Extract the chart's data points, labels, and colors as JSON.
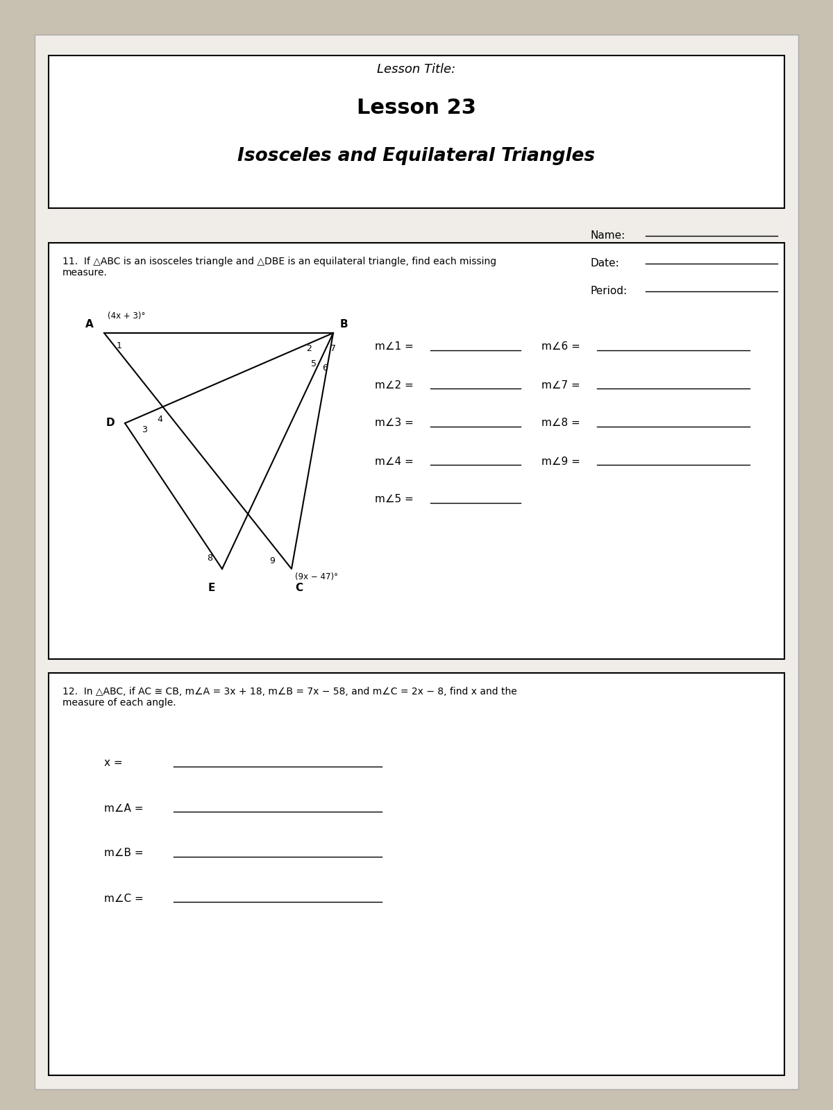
{
  "bg_color": "#c8c0b0",
  "paper_color": "#f0ede8",
  "title_lesson": "Lesson Title:",
  "title_main": "Lesson 23",
  "title_sub": "Isosceles and Equilateral Triangles",
  "name_label": "Name:",
  "date_label": "Date:",
  "period_label": "Period:",
  "q11_text": "11.  If △ABC is an isosceles triangle and △DBE is an equilateral triangle, find each missing\nmeasure.",
  "q11_labels_left": [
    "m∠1 =",
    "m∠2 =",
    "m∠3 =",
    "m∠4 =",
    "m∠5 ="
  ],
  "q11_labels_right": [
    "m∠6 =",
    "m∠7 =",
    "m∠8 =",
    "m∠9 ="
  ],
  "q12_text": "12.  In △ABC, if AC ≅ CB, m∠A = 3x + 18, m∠B = 7x − 58, and m∠C = 2x − 8, find x and the\nmeasure of each angle.",
  "q12_labels": [
    "x =",
    "m∠A =",
    "m∠B =",
    "m∠C ="
  ],
  "tri_label_A": "A",
  "tri_label_B": "B",
  "tri_label_C": "C",
  "tri_label_D": "D",
  "tri_label_E": "E",
  "angle_expr_top": "(4x + 3)°",
  "angle_expr_bottom": "(9x − 47)°",
  "angle_nums": [
    "1",
    "2",
    "3",
    "4",
    "5",
    "6",
    "7",
    "8",
    "9"
  ]
}
